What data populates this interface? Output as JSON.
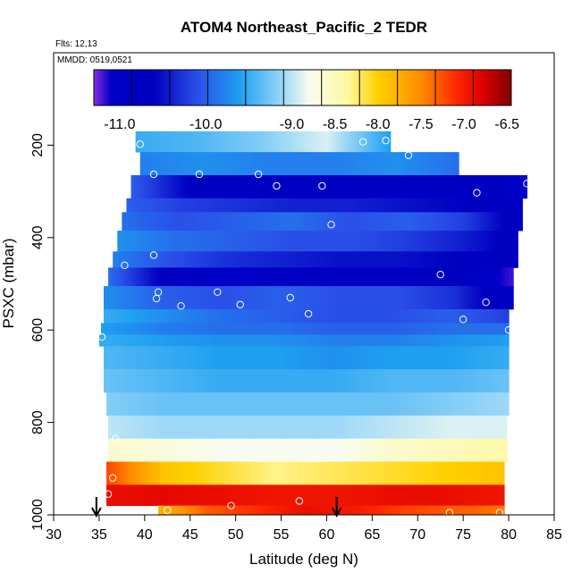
{
  "chart_data": {
    "type": "heatmap",
    "title": "ATOM4 Northeast_Pacific_2 TEDR",
    "flights_label": "Flts: 12,13",
    "dates_label": "MMDD: 0519,0521",
    "xlabel": "Latitude (deg N)",
    "ylabel": "PSXC (mbar)",
    "xlim": [
      30,
      85
    ],
    "ylim": [
      1000,
      0
    ],
    "x_ticks": [
      "30",
      "35",
      "40",
      "45",
      "50",
      "55",
      "60",
      "65",
      "70",
      "75",
      "80",
      "85"
    ],
    "y_ticks": [
      "200",
      "400",
      "600",
      "800",
      "1000"
    ],
    "colorbar": {
      "min": -11.3,
      "max": -6.45,
      "tick_values": [
        -11.0,
        -10.0,
        -9.0,
        -8.5,
        -8.0,
        -7.5,
        -7.0,
        -6.5
      ],
      "tick_labels": [
        "-11.0",
        "-10.0",
        "-9.0",
        "-8.5",
        "-8.0",
        "-7.5",
        "-7.0",
        "-6.5"
      ],
      "stops": [
        {
          "v": -11.3,
          "c": "#8a2be2"
        },
        {
          "v": -11.1,
          "c": "#0000c8"
        },
        {
          "v": -10.6,
          "c": "#0000c0"
        },
        {
          "v": -10.1,
          "c": "#2a4fe8"
        },
        {
          "v": -9.6,
          "c": "#1ea0f0"
        },
        {
          "v": -9.15,
          "c": "#8fd3f8"
        },
        {
          "v": -8.8,
          "c": "#f8fcf0"
        },
        {
          "v": -8.35,
          "c": "#fff8a0"
        },
        {
          "v": -8.0,
          "c": "#ffd000"
        },
        {
          "v": -7.5,
          "c": "#ff8c00"
        },
        {
          "v": -7.1,
          "c": "#ff2a00"
        },
        {
          "v": -6.8,
          "c": "#e00000"
        },
        {
          "v": -6.45,
          "c": "#800000"
        }
      ]
    },
    "layers": [
      {
        "p": [
          170,
          215
        ],
        "lat": [
          39.0,
          67.0
        ],
        "v": [
          -9.5,
          -9.4,
          -9.2,
          -8.9,
          -9.6
        ]
      },
      {
        "p": [
          215,
          265
        ],
        "lat": [
          39.5,
          74.5
        ],
        "v": [
          -9.8,
          -9.7,
          -9.8,
          -9.8,
          -9.7,
          -9.9
        ]
      },
      {
        "p": [
          265,
          315
        ],
        "lat": [
          38.5,
          82.0
        ],
        "v": [
          -10.0,
          -10.6,
          -10.9,
          -10.7,
          -10.8,
          -10.9,
          -10.8,
          -11.0
        ]
      },
      {
        "p": [
          315,
          345
        ],
        "lat": [
          38.0,
          81.5
        ],
        "v": [
          -10.0,
          -10.2,
          -10.3,
          -10.4,
          -10.4,
          -10.5,
          -10.6,
          -10.9
        ]
      },
      {
        "p": [
          345,
          385
        ],
        "lat": [
          37.5,
          81.5
        ],
        "v": [
          -9.9,
          -10.1,
          -10.0,
          -9.9,
          -10.1,
          -10.0,
          -10.2,
          -10.8
        ]
      },
      {
        "p": [
          385,
          430
        ],
        "lat": [
          37.0,
          81.0
        ],
        "v": [
          -9.7,
          -9.9,
          -10.0,
          -10.1,
          -10.1,
          -10.2,
          -10.4,
          -10.7
        ]
      },
      {
        "p": [
          430,
          465
        ],
        "lat": [
          36.5,
          81.0
        ],
        "v": [
          -9.8,
          -10.1,
          -10.3,
          -10.4,
          -10.5,
          -10.5,
          -10.6,
          -10.8
        ]
      },
      {
        "p": [
          465,
          505
        ],
        "lat": [
          36.0,
          80.5
        ],
        "v": [
          -9.9,
          -10.7,
          -11.0,
          -10.9,
          -10.9,
          -10.8,
          -10.8,
          -11.2
        ]
      },
      {
        "p": [
          505,
          555
        ],
        "lat": [
          35.5,
          80.5
        ],
        "v": [
          -9.7,
          -10.0,
          -10.1,
          -10.0,
          -10.1,
          -10.1,
          -10.3,
          -10.9
        ]
      },
      {
        "p": [
          555,
          585
        ],
        "lat": [
          35.5,
          80.0
        ],
        "v": [
          -9.5,
          -9.7,
          -9.9,
          -10.0,
          -10.1,
          -10.1,
          -10.0,
          -10.2
        ]
      },
      {
        "p": [
          585,
          610
        ],
        "lat": [
          35.2,
          80.0
        ],
        "v": [
          -9.6,
          -9.8,
          -9.9,
          -9.9,
          -10.0,
          -10.0,
          -9.9,
          -9.9
        ]
      },
      {
        "p": [
          610,
          635
        ],
        "lat": [
          35.0,
          80.0
        ],
        "v": [
          -9.5,
          -9.6,
          -9.7,
          -9.7,
          -9.8,
          -9.8,
          -9.7,
          -9.6
        ]
      },
      {
        "p": [
          635,
          685
        ],
        "lat": [
          35.5,
          80.0
        ],
        "v": [
          -9.4,
          -9.5,
          -9.6,
          -9.6,
          -9.7,
          -9.6,
          -9.6,
          -9.5
        ]
      },
      {
        "p": [
          685,
          735
        ],
        "lat": [
          35.5,
          80.0
        ],
        "v": [
          -9.3,
          -9.4,
          -9.5,
          -9.5,
          -9.5,
          -9.4,
          -9.4,
          -9.3
        ]
      },
      {
        "p": [
          735,
          785
        ],
        "lat": [
          35.8,
          80.0
        ],
        "v": [
          -9.2,
          -9.3,
          -9.3,
          -9.3,
          -9.3,
          -9.3,
          -9.2,
          -9.1
        ]
      },
      {
        "p": [
          785,
          835
        ],
        "lat": [
          36.0,
          79.8
        ],
        "v": [
          -9.0,
          -9.1,
          -9.1,
          -9.1,
          -9.1,
          -9.0,
          -8.9,
          -8.9
        ]
      },
      {
        "p": [
          835,
          885
        ],
        "lat": [
          36.0,
          79.8
        ],
        "v": [
          -8.6,
          -8.7,
          -8.8,
          -8.8,
          -8.8,
          -8.6,
          -8.5,
          -8.4
        ]
      },
      {
        "p": [
          885,
          935
        ],
        "lat": [
          35.8,
          79.5
        ],
        "v": [
          -7.2,
          -7.9,
          -8.1,
          -8.3,
          -8.2,
          -8.1,
          -8.0,
          -7.9
        ]
      },
      {
        "p": [
          935,
          980
        ],
        "lat": [
          35.8,
          79.5
        ],
        "v": [
          -6.9,
          -6.85,
          -6.9,
          -6.95,
          -6.95,
          -6.9,
          -6.9,
          -6.95
        ]
      },
      {
        "p": [
          980,
          1000
        ],
        "lat": [
          41.5,
          79.5
        ],
        "v": [
          -7.8,
          -7.3,
          -7.1,
          -6.9,
          -7.0,
          -7.2,
          -7.3,
          -7.4
        ]
      }
    ],
    "points": [
      [
        39.5,
        198
      ],
      [
        64.0,
        193
      ],
      [
        66.5,
        190
      ],
      [
        69.0,
        222
      ],
      [
        41.0,
        263
      ],
      [
        46.0,
        263
      ],
      [
        52.5,
        263
      ],
      [
        54.5,
        288
      ],
      [
        59.5,
        288
      ],
      [
        82.0,
        283
      ],
      [
        76.5,
        303
      ],
      [
        60.5,
        372
      ],
      [
        37.8,
        460
      ],
      [
        41.0,
        438
      ],
      [
        41.5,
        518
      ],
      [
        41.3,
        532
      ],
      [
        44.0,
        548
      ],
      [
        48.0,
        518
      ],
      [
        50.5,
        545
      ],
      [
        56.0,
        530
      ],
      [
        58.0,
        565
      ],
      [
        72.5,
        480
      ],
      [
        77.5,
        540
      ],
      [
        75.0,
        577
      ],
      [
        80.0,
        600
      ],
      [
        35.3,
        615
      ],
      [
        36.8,
        835
      ],
      [
        36.5,
        920
      ],
      [
        36.0,
        955
      ],
      [
        42.5,
        990
      ],
      [
        49.5,
        980
      ],
      [
        57.0,
        970
      ],
      [
        73.5,
        995
      ],
      [
        79.0,
        995
      ]
    ],
    "arrows_lat": [
      34.7,
      61.1
    ]
  }
}
